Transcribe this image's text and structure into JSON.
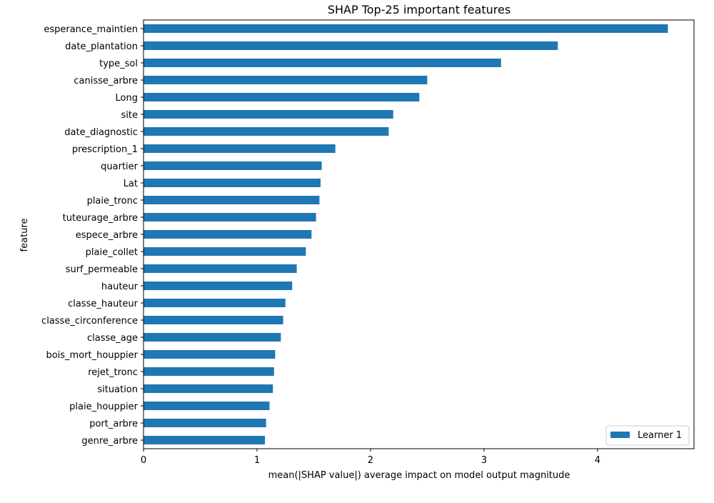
{
  "chart_data": {
    "type": "bar",
    "orientation": "horizontal",
    "title": "SHAP Top-25 important features",
    "xlabel": "mean(|SHAP value|) average impact on model output magnitude",
    "ylabel": "feature",
    "xlim": [
      0,
      4.85
    ],
    "xticks": [
      0,
      1,
      2,
      3,
      4
    ],
    "grid": false,
    "legend_position": "bottom-right",
    "categories": [
      "esperance_maintien",
      "date_plantation",
      "type_sol",
      "canisse_arbre",
      "Long",
      "site",
      "date_diagnostic",
      "prescription_1",
      "quartier",
      "Lat",
      "plaie_tronc",
      "tuteurage_arbre",
      "espece_arbre",
      "plaie_collet",
      "surf_permeable",
      "hauteur",
      "classe_hauteur",
      "classe_circonference",
      "classe_age",
      "bois_mort_houppier",
      "rejet_tronc",
      "situation",
      "plaie_houppier",
      "port_arbre",
      "genre_arbre"
    ],
    "series": [
      {
        "name": "Learner 1",
        "color": "#1f77b4",
        "values": [
          4.62,
          3.65,
          3.15,
          2.5,
          2.43,
          2.2,
          2.16,
          1.69,
          1.57,
          1.56,
          1.55,
          1.52,
          1.48,
          1.43,
          1.35,
          1.31,
          1.25,
          1.23,
          1.21,
          1.16,
          1.15,
          1.14,
          1.11,
          1.08,
          1.07
        ]
      }
    ]
  }
}
